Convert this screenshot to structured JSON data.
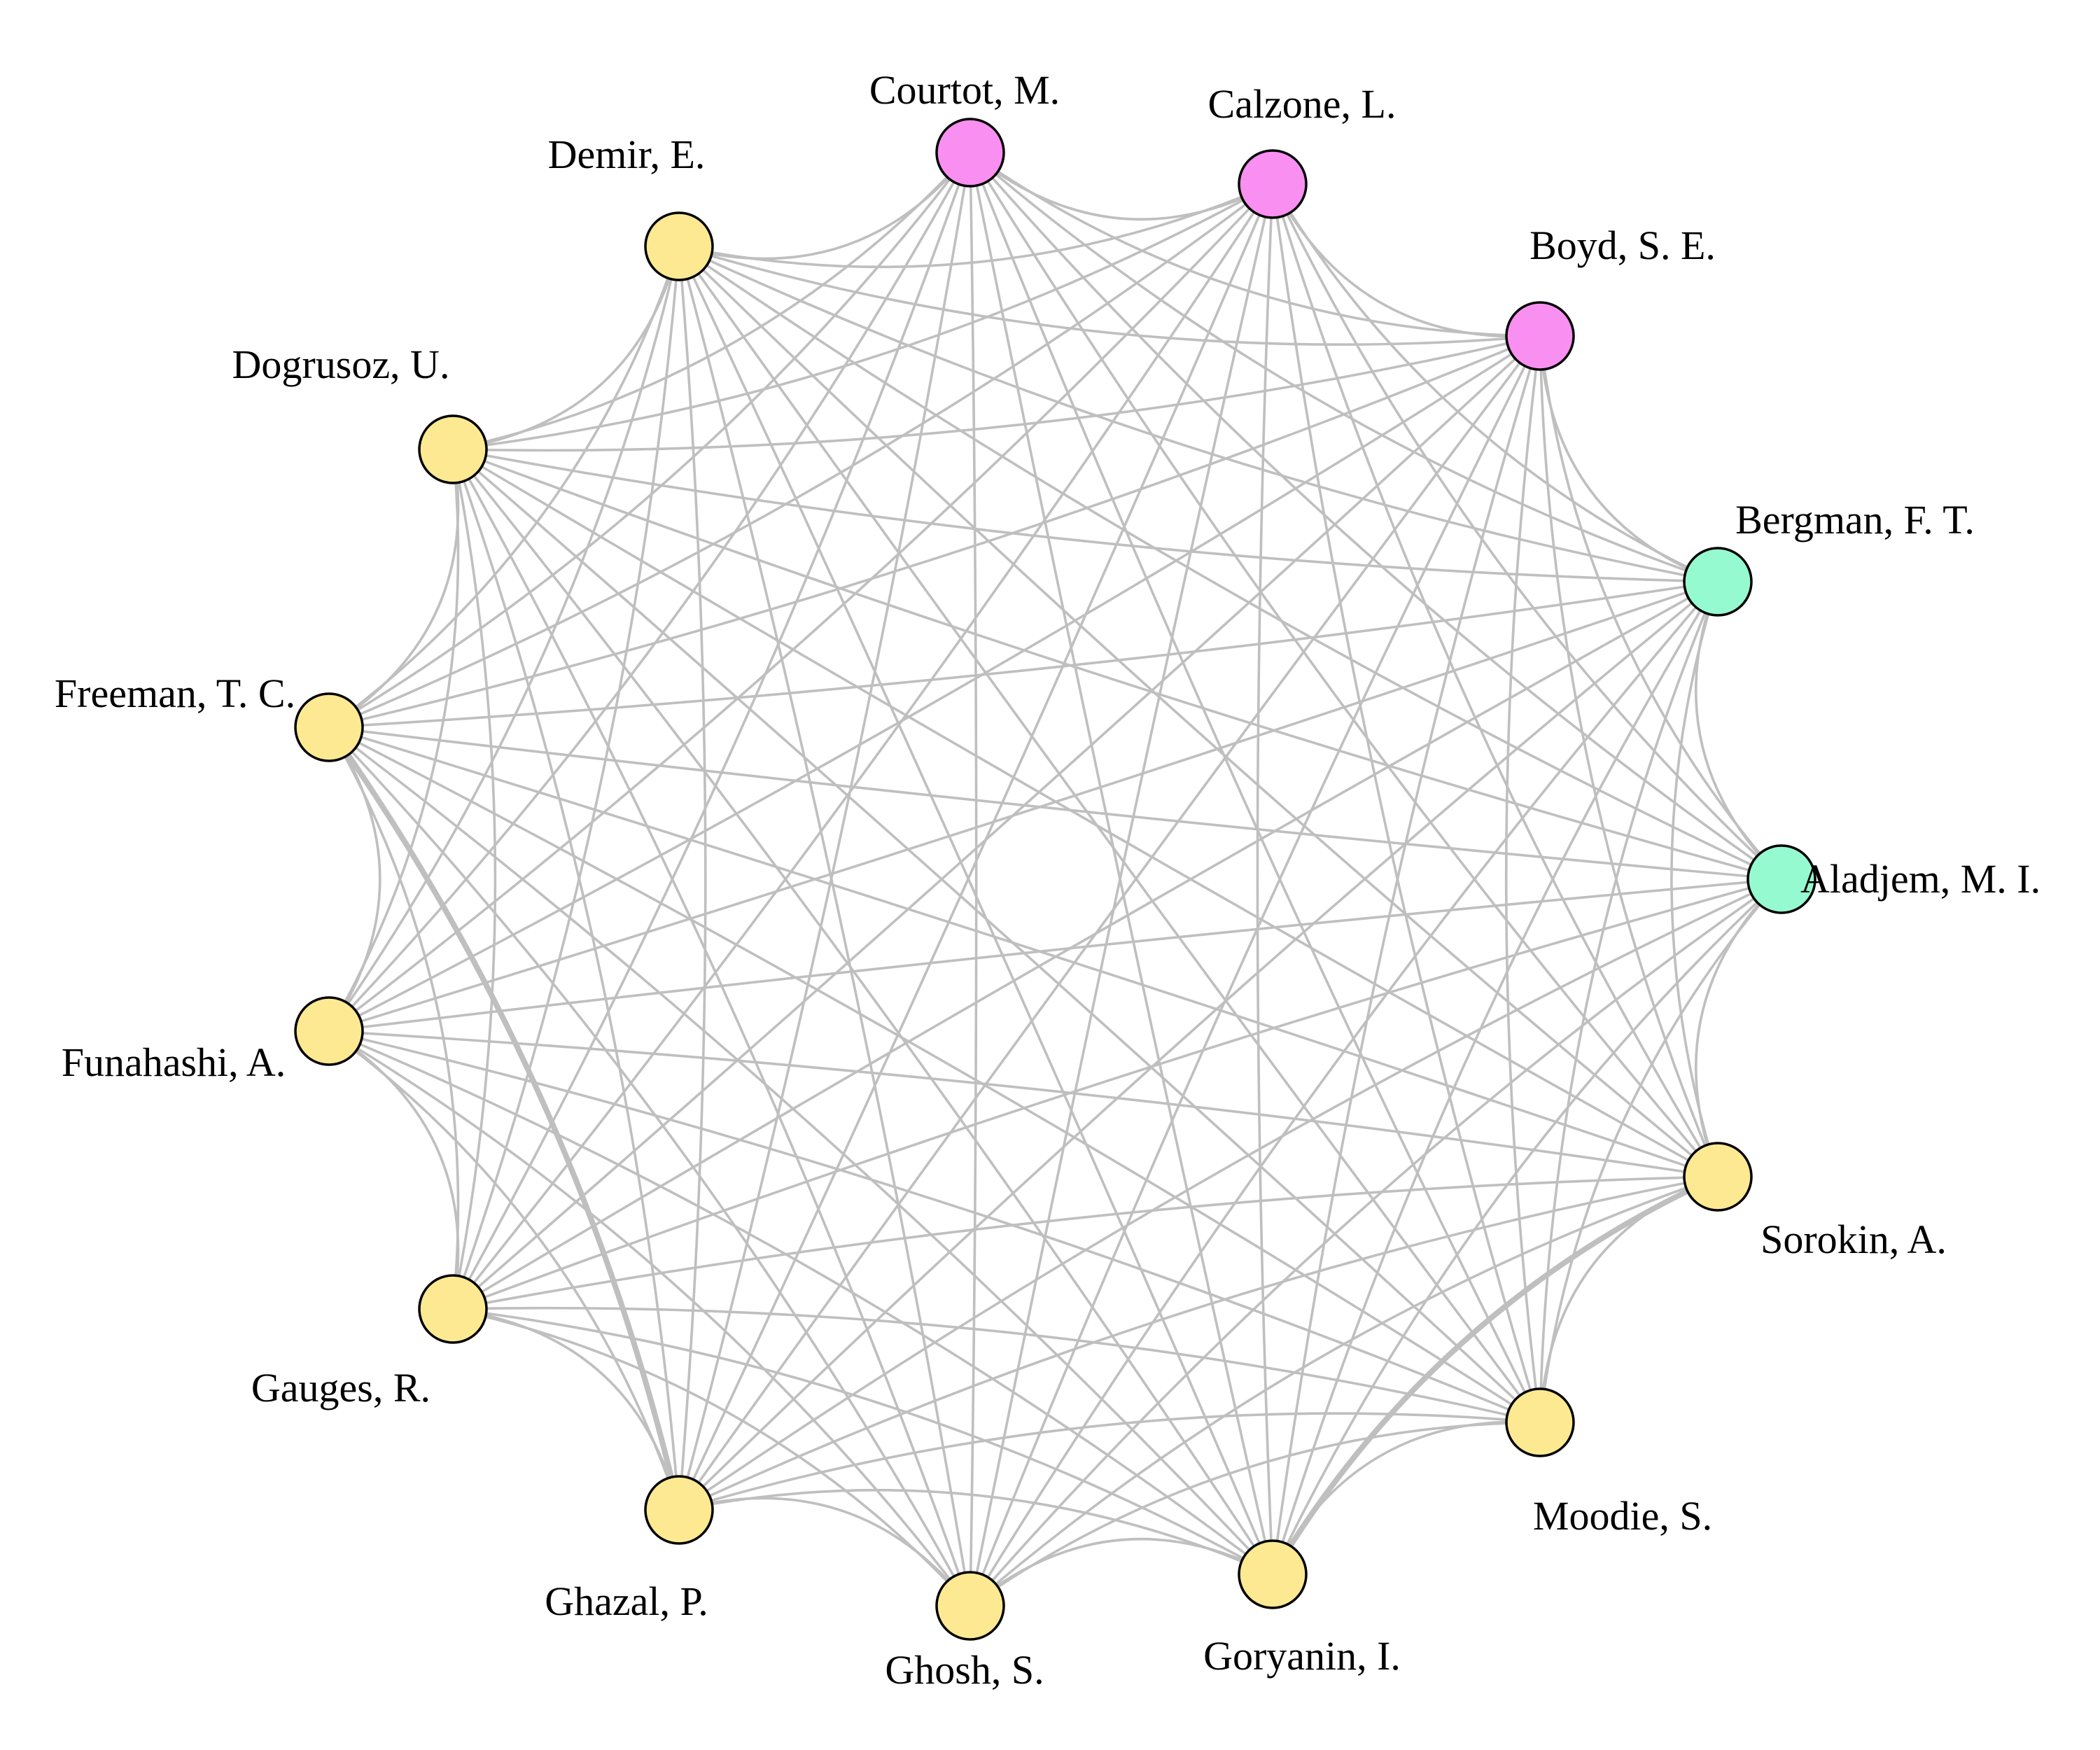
{
  "colors": {
    "edge": "#bfbfbf",
    "node_stroke": "#000000",
    "yellow": "#fde992",
    "pink": "#f98ff1",
    "mint": "#96fad1"
  },
  "nodes": [
    {
      "id": "courtot",
      "label": "Courtot, M.",
      "color": "pink"
    },
    {
      "id": "calzone",
      "label": "Calzone, L.",
      "color": "pink"
    },
    {
      "id": "boyd",
      "label": "Boyd, S. E.",
      "color": "pink"
    },
    {
      "id": "bergman",
      "label": "Bergman, F. T.",
      "color": "mint"
    },
    {
      "id": "aladjem",
      "label": "Aladjem, M. I.",
      "color": "mint"
    },
    {
      "id": "sorokin",
      "label": "Sorokin, A.",
      "color": "yellow"
    },
    {
      "id": "moodie",
      "label": "Moodie, S.",
      "color": "yellow"
    },
    {
      "id": "goryanin",
      "label": "Goryanin, I.",
      "color": "yellow"
    },
    {
      "id": "ghosh",
      "label": "Ghosh, S.",
      "color": "yellow"
    },
    {
      "id": "ghazal",
      "label": "Ghazal, P.",
      "color": "yellow"
    },
    {
      "id": "gauges",
      "label": "Gauges, R.",
      "color": "yellow"
    },
    {
      "id": "funahashi",
      "label": "Funahashi, A.",
      "color": "yellow"
    },
    {
      "id": "freeman",
      "label": "Freeman, T. C.",
      "color": "yellow"
    },
    {
      "id": "dogrusoz",
      "label": "Dogrusoz, U.",
      "color": "yellow"
    },
    {
      "id": "demir",
      "label": "Demir, E.",
      "color": "yellow"
    }
  ],
  "heavy_edges": [
    [
      "freeman",
      "ghazal"
    ],
    [
      "sorokin",
      "goryanin"
    ]
  ]
}
